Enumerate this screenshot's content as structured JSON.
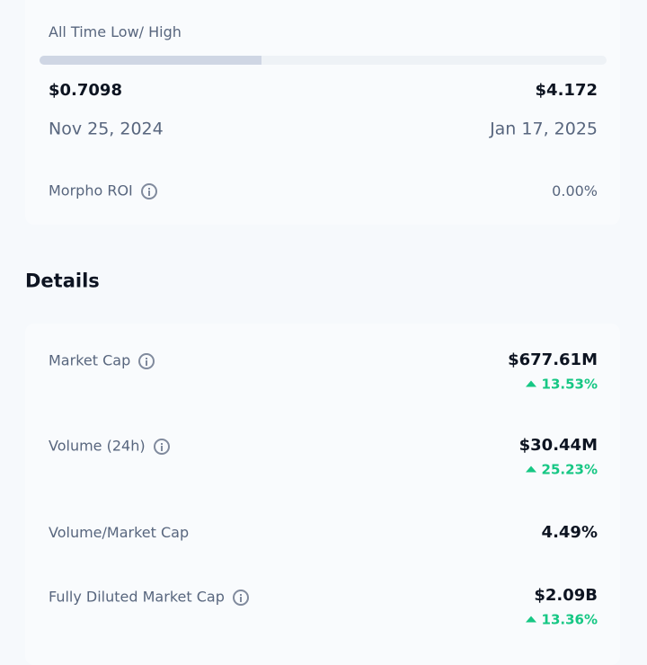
{
  "range": {
    "title": "All Time Low/ High",
    "low": {
      "price": "$0.7098",
      "date": "Nov 25, 2024"
    },
    "high": {
      "price": "$4.172",
      "date": "Jan 17, 2025"
    },
    "roi": {
      "label": "Morpho ROI",
      "value": "0.00%"
    }
  },
  "details": {
    "title": "Details",
    "rows": [
      {
        "label": "Market Cap",
        "value": "$677.61M",
        "change": "13.53%"
      },
      {
        "label": "Volume (24h)",
        "value": "$30.44M",
        "change": "25.23%"
      },
      {
        "label": "Volume/Market Cap",
        "value": "4.49%"
      },
      {
        "label": "Fully Diluted Market Cap",
        "value": "$2.09B",
        "change": "13.36%"
      }
    ]
  }
}
